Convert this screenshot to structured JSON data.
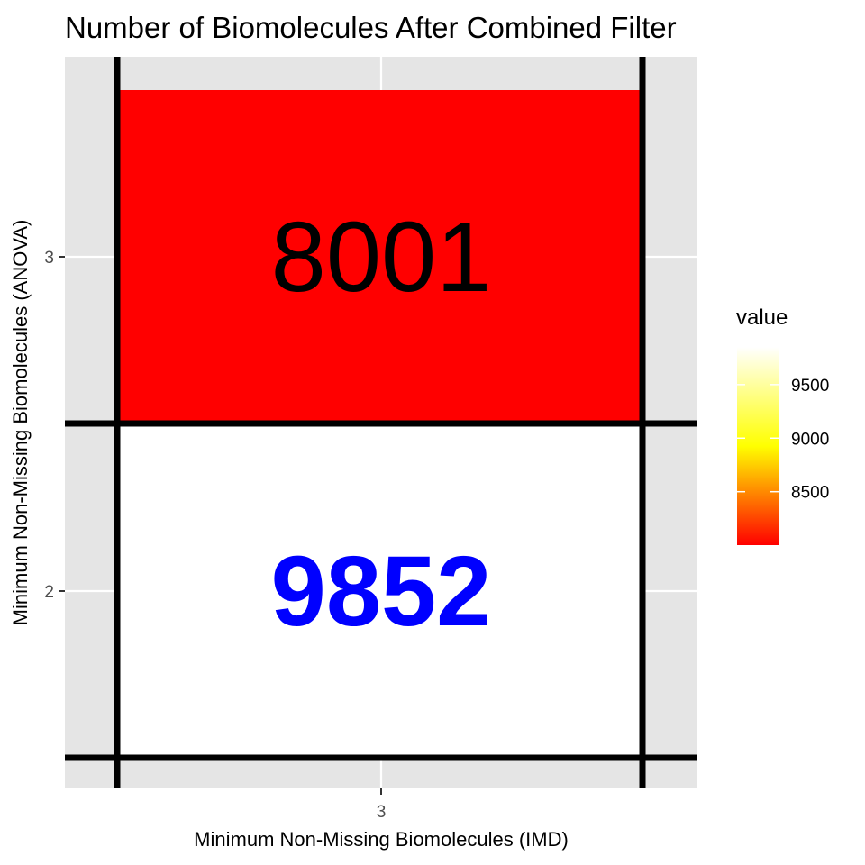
{
  "chart_data": {
    "type": "heatmap",
    "title": "Number of Biomolecules After Combined Filter",
    "xlabel": "Minimum Non-Missing Biomolecules (IMD)",
    "ylabel": "Minimum Non-Missing Biomolecules (ANOVA)",
    "x_categories": [
      "3"
    ],
    "y_categories": [
      "2",
      "3"
    ],
    "cells": [
      {
        "x": "3",
        "y": "3",
        "value": 8001,
        "label": "8001",
        "label_color": "#000000",
        "label_bold": false
      },
      {
        "x": "3",
        "y": "2",
        "value": 9852,
        "label": "9852",
        "label_color": "#0000ff",
        "label_bold": true
      }
    ],
    "legend": {
      "title": "value",
      "position": "right",
      "range": [
        8001,
        9852
      ],
      "ticks": [
        8500,
        9000,
        9500
      ],
      "tick_labels": [
        "8500",
        "9000",
        "9500"
      ],
      "colors": [
        "#ff0000",
        "#ffff00",
        "#ffffff"
      ]
    },
    "grid": true
  }
}
